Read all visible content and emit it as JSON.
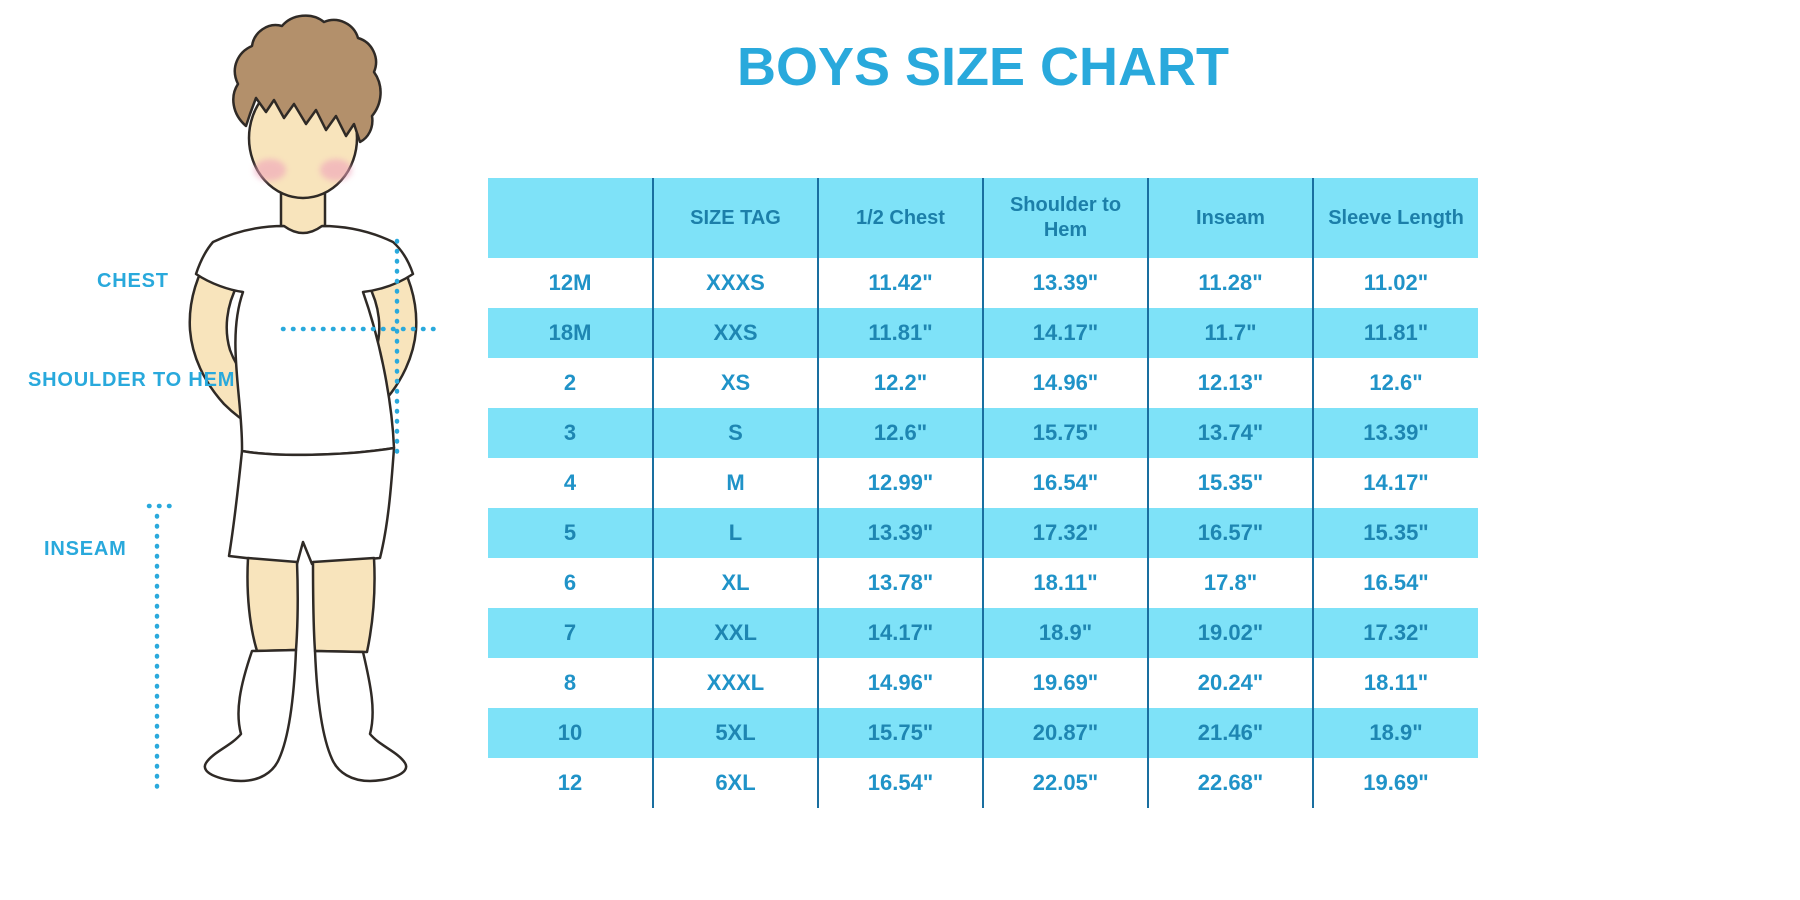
{
  "title": "BOYS SIZE CHART",
  "diagram": {
    "labels": {
      "chest": "CHEST",
      "shoulder_to_hem": "SHOULDER TO HEM",
      "inseam": "INSEAM"
    }
  },
  "table": {
    "columns": [
      "",
      "SIZE TAG",
      "1/2 Chest",
      "Shoulder to Hem",
      "Inseam",
      "Sleeve Length"
    ],
    "rows": [
      [
        "12M",
        "XXXS",
        "11.42\"",
        "13.39\"",
        "11.28\"",
        "11.02\""
      ],
      [
        "18M",
        "XXS",
        "11.81\"",
        "14.17\"",
        "11.7\"",
        "11.81\""
      ],
      [
        "2",
        "XS",
        "12.2\"",
        "14.96\"",
        "12.13\"",
        "12.6\""
      ],
      [
        "3",
        "S",
        "12.6\"",
        "15.75\"",
        "13.74\"",
        "13.39\""
      ],
      [
        "4",
        "M",
        "12.99\"",
        "16.54\"",
        "15.35\"",
        "14.17\""
      ],
      [
        "5",
        "L",
        "13.39\"",
        "17.32\"",
        "16.57\"",
        "15.35\""
      ],
      [
        "6",
        "XL",
        "13.78\"",
        "18.11\"",
        "17.8\"",
        "16.54\""
      ],
      [
        "7",
        "XXL",
        "14.17\"",
        "18.9\"",
        "19.02\"",
        "17.32\""
      ],
      [
        "8",
        "XXXL",
        "14.96\"",
        "19.69\"",
        "20.24\"",
        "18.11\""
      ],
      [
        "10",
        "5XL",
        "15.75\"",
        "20.87\"",
        "21.46\"",
        "18.9\""
      ],
      [
        "12",
        "6XL",
        "16.54\"",
        "22.05\"",
        "22.68\"",
        "19.69\""
      ]
    ]
  },
  "colors": {
    "accent_blue": "#29A9DC",
    "band_blue": "#7EE2F8",
    "header_text": "#1C7FA9",
    "cell_text": "#2093C8",
    "divider": "#1A6FA0",
    "skin": "#F8E4BC",
    "hair": "#B3906B",
    "blush": "#EFA3BB",
    "outline": "#2F2A26"
  }
}
